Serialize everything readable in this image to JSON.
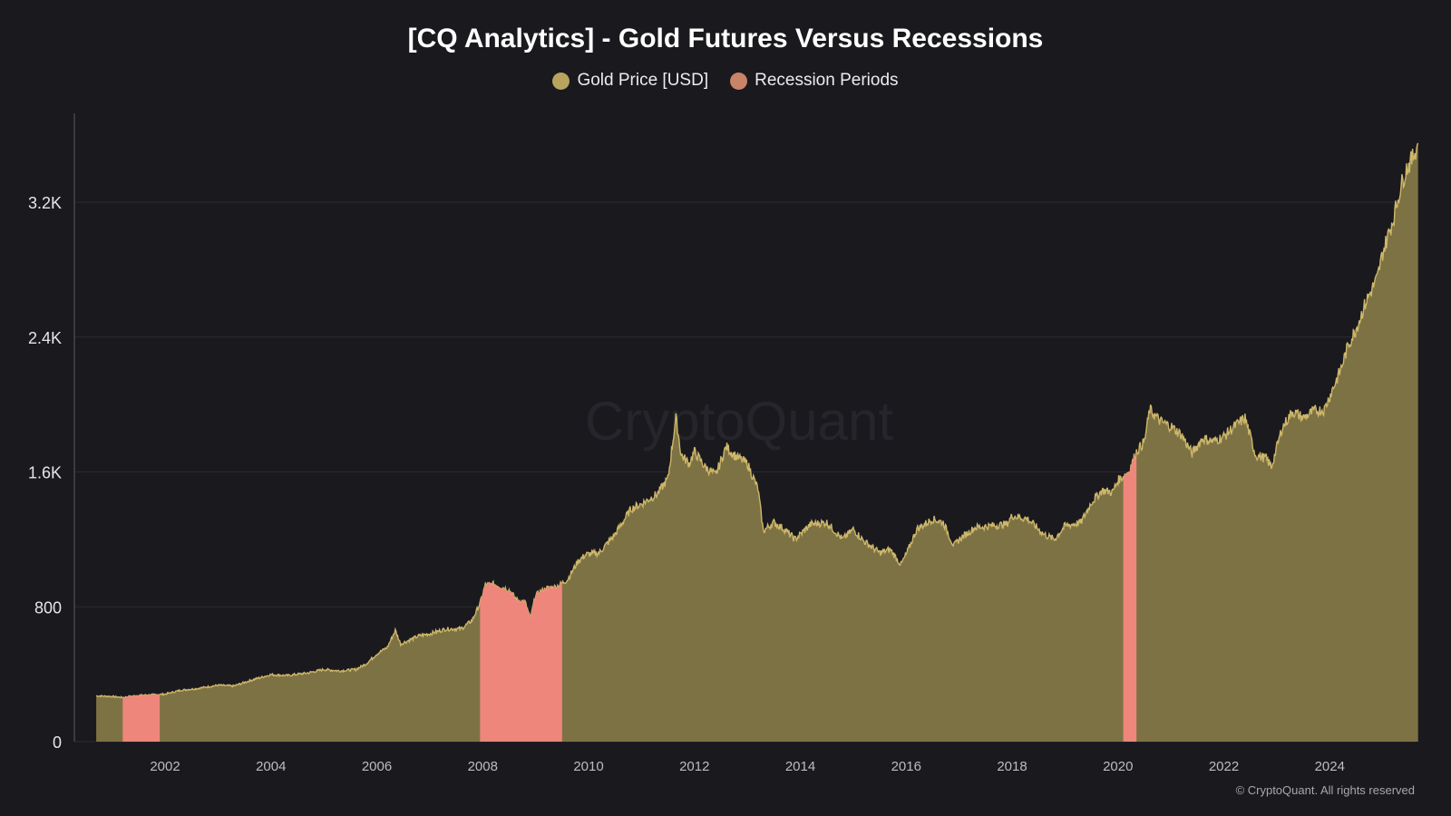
{
  "header": {
    "title": "[CQ Analytics] - Gold Futures Versus Recessions"
  },
  "legend": [
    {
      "label": "Gold Price [USD]",
      "color": "#b8a45e"
    },
    {
      "label": "Recession Periods",
      "color": "#c98368"
    }
  ],
  "watermark": "CryptoQuant",
  "footer": {
    "copyright": "© CryptoQuant. All rights reserved"
  },
  "colors": {
    "background": "#1a191e",
    "area": "#7d7244",
    "line": "#cdb76a",
    "recession": "#ee867c",
    "grid": "#2b2a30"
  },
  "chart_data": {
    "type": "area",
    "title": "[CQ Analytics] - Gold Futures Versus Recessions",
    "xlabel": "",
    "ylabel": "",
    "xlim": [
      2000.7,
      2025.67
    ],
    "ylim": [
      0,
      3550
    ],
    "y_ticks": [
      {
        "value": 0,
        "label": "0"
      },
      {
        "value": 800,
        "label": "800"
      },
      {
        "value": 1600,
        "label": "1.6K"
      },
      {
        "value": 2400,
        "label": "2.4K"
      },
      {
        "value": 3200,
        "label": "3.2K"
      }
    ],
    "x_ticks": [
      {
        "value": 2002,
        "label": "2002"
      },
      {
        "value": 2004,
        "label": "2004"
      },
      {
        "value": 2006,
        "label": "2006"
      },
      {
        "value": 2008,
        "label": "2008"
      },
      {
        "value": 2010,
        "label": "2010"
      },
      {
        "value": 2012,
        "label": "2012"
      },
      {
        "value": 2014,
        "label": "2014"
      },
      {
        "value": 2016,
        "label": "2016"
      },
      {
        "value": 2018,
        "label": "2018"
      },
      {
        "value": 2020,
        "label": "2020"
      },
      {
        "value": 2022,
        "label": "2022"
      },
      {
        "value": 2024,
        "label": "2024"
      }
    ],
    "grid": true,
    "legend_position": "top-center",
    "series": [
      {
        "name": "Gold Price [USD]",
        "x": [
          2000.7,
          2001.0,
          2001.2,
          2001.5,
          2001.75,
          2002.0,
          2002.3,
          2002.6,
          2003.0,
          2003.3,
          2003.6,
          2004.0,
          2004.3,
          2004.7,
          2005.0,
          2005.3,
          2005.6,
          2005.8,
          2006.0,
          2006.2,
          2006.35,
          2006.45,
          2006.6,
          2006.8,
          2007.0,
          2007.3,
          2007.6,
          2007.8,
          2007.95,
          2008.05,
          2008.2,
          2008.5,
          2008.65,
          2008.8,
          2008.9,
          2009.0,
          2009.2,
          2009.4,
          2009.6,
          2009.8,
          2009.95,
          2010.2,
          2010.5,
          2010.8,
          2011.0,
          2011.3,
          2011.5,
          2011.65,
          2011.75,
          2011.9,
          2012.0,
          2012.2,
          2012.4,
          2012.6,
          2012.75,
          2012.9,
          2013.0,
          2013.2,
          2013.3,
          2013.5,
          2013.7,
          2013.9,
          2014.0,
          2014.2,
          2014.5,
          2014.8,
          2015.0,
          2015.2,
          2015.5,
          2015.7,
          2015.9,
          2016.0,
          2016.2,
          2016.5,
          2016.7,
          2016.9,
          2017.0,
          2017.3,
          2017.6,
          2017.9,
          2018.0,
          2018.3,
          2018.6,
          2018.8,
          2019.0,
          2019.3,
          2019.5,
          2019.7,
          2019.9,
          2020.0,
          2020.2,
          2020.35,
          2020.5,
          2020.6,
          2020.8,
          2021.0,
          2021.2,
          2021.4,
          2021.6,
          2021.8,
          2022.0,
          2022.2,
          2022.4,
          2022.6,
          2022.8,
          2022.9,
          2023.1,
          2023.3,
          2023.5,
          2023.7,
          2023.9,
          2024.0,
          2024.2,
          2024.35,
          2024.5,
          2024.7,
          2024.9,
          2025.0,
          2025.2,
          2025.35,
          2025.45,
          2025.55,
          2025.67
        ],
        "y": [
          272,
          268,
          262,
          275,
          278,
          282,
          305,
          315,
          335,
          330,
          362,
          398,
          392,
          408,
          428,
          420,
          428,
          462,
          520,
          560,
          660,
          580,
          600,
          628,
          640,
          668,
          670,
          720,
          820,
          930,
          935,
          900,
          840,
          830,
          730,
          870,
          910,
          920,
          960,
          1070,
          1110,
          1120,
          1230,
          1380,
          1410,
          1470,
          1560,
          1920,
          1700,
          1650,
          1720,
          1630,
          1580,
          1750,
          1700,
          1670,
          1650,
          1500,
          1250,
          1300,
          1260,
          1200,
          1230,
          1290,
          1300,
          1200,
          1260,
          1190,
          1120,
          1140,
          1050,
          1110,
          1260,
          1320,
          1300,
          1160,
          1200,
          1270,
          1280,
          1290,
          1340,
          1320,
          1230,
          1200,
          1280,
          1300,
          1420,
          1490,
          1480,
          1550,
          1600,
          1720,
          1780,
          1970,
          1900,
          1870,
          1820,
          1710,
          1800,
          1780,
          1810,
          1870,
          1920,
          1700,
          1680,
          1630,
          1860,
          1960,
          1920,
          1960,
          1970,
          2050,
          2200,
          2350,
          2450,
          2620,
          2750,
          2900,
          3100,
          3300,
          3400,
          3450,
          3550
        ]
      }
    ],
    "recession_periods": [
      {
        "start": 2001.2,
        "end": 2001.9
      },
      {
        "start": 2007.95,
        "end": 2009.5
      },
      {
        "start": 2020.1,
        "end": 2020.35
      }
    ]
  }
}
